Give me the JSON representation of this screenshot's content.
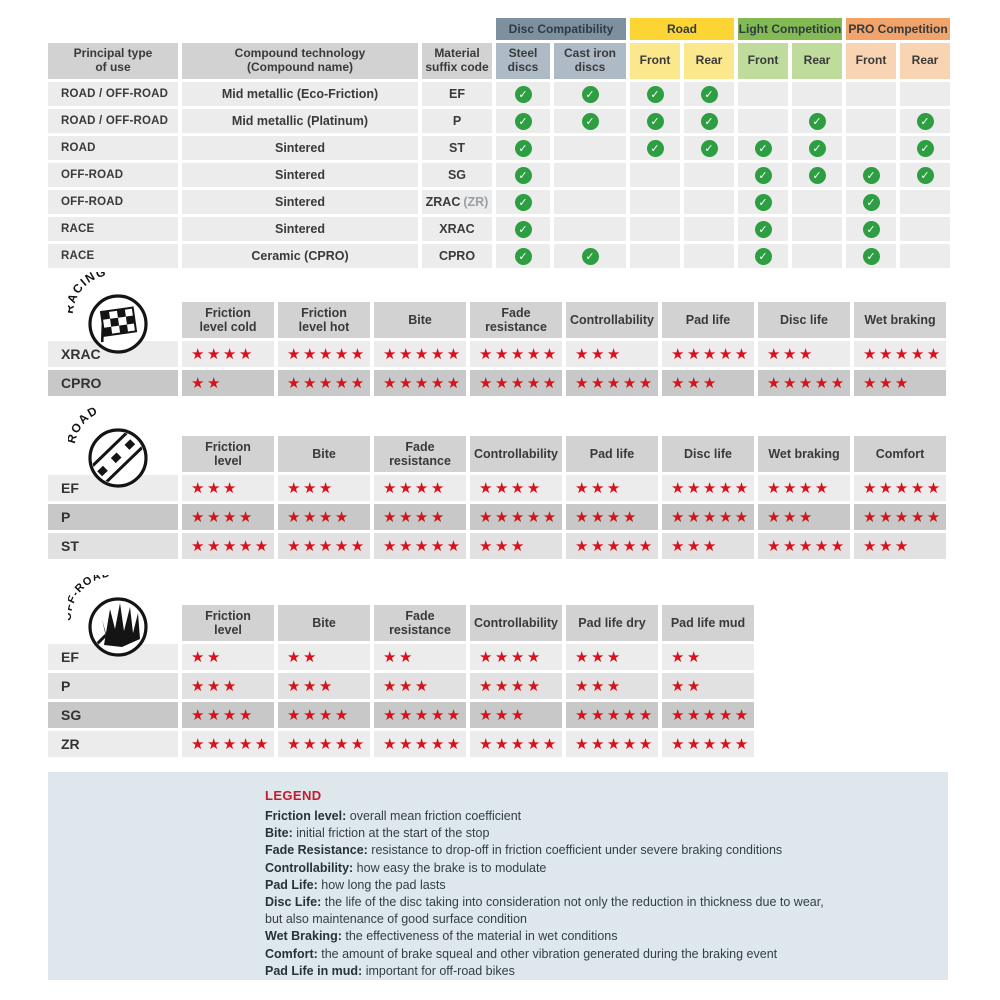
{
  "glyphs": {
    "check": "✓",
    "star": "★"
  },
  "palette": {
    "header_gray": "#d2d2d2",
    "row_light": "#ececec",
    "row_mid": "#e1e1e1",
    "row_dark": "#c8c8c8",
    "star_red": "#d6121b",
    "check_green": "#2d9e41",
    "icon_black": "#141414",
    "legend_bg": "#dee8ec",
    "legend_title_red": "#c8182b",
    "legend_text": "#333d45"
  },
  "compat": {
    "col_headers": [
      "Principal type\nof use",
      "Compound technology\n(Compound name)",
      "Material\nsuffix code"
    ],
    "groups": [
      {
        "label": "Disc Compatibility",
        "color": "#7d90a0",
        "sub_color": "#aebbc6",
        "subs": [
          "Steel\ndiscs",
          "Cast iron\ndiscs"
        ]
      },
      {
        "label": "Road",
        "color": "#fcd535",
        "sub_color": "#fbe88c",
        "subs": [
          "Front",
          "Rear"
        ]
      },
      {
        "label": "Light Competition",
        "color": "#83ba53",
        "sub_color": "#bfdc9d",
        "subs": [
          "Front",
          "Rear"
        ]
      },
      {
        "label": "PRO Competition",
        "color": "#f2a36a",
        "sub_color": "#f9d4b2",
        "subs": [
          "Front",
          "Rear"
        ]
      }
    ],
    "rows": [
      {
        "use": "ROAD / OFF-ROAD",
        "compound": "Mid metallic (Eco-Friction)",
        "code": "EF",
        "code_note": "",
        "checks": [
          1,
          1,
          1,
          1,
          0,
          0,
          0,
          0
        ]
      },
      {
        "use": "ROAD / OFF-ROAD",
        "compound": "Mid metallic (Platinum)",
        "code": "P",
        "code_note": "",
        "checks": [
          1,
          1,
          1,
          1,
          0,
          1,
          0,
          1
        ]
      },
      {
        "use": "ROAD",
        "compound": "Sintered",
        "code": "ST",
        "code_note": "",
        "checks": [
          1,
          0,
          1,
          1,
          1,
          1,
          0,
          1
        ]
      },
      {
        "use": "OFF-ROAD",
        "compound": "Sintered",
        "code": "SG",
        "code_note": "",
        "checks": [
          1,
          0,
          0,
          0,
          1,
          1,
          1,
          1
        ]
      },
      {
        "use": "OFF-ROAD",
        "compound": "Sintered",
        "code": "ZRAC",
        "code_note": "(ZR)",
        "checks": [
          1,
          0,
          0,
          0,
          1,
          0,
          1,
          0
        ]
      },
      {
        "use": "RACE",
        "compound": "Sintered",
        "code": "XRAC",
        "code_note": "",
        "checks": [
          1,
          0,
          0,
          0,
          1,
          0,
          1,
          0
        ]
      },
      {
        "use": "RACE",
        "compound": "Ceramic (CPRO)",
        "code": "CPRO",
        "code_note": "",
        "checks": [
          1,
          1,
          0,
          0,
          1,
          0,
          1,
          0
        ]
      }
    ]
  },
  "sections": [
    {
      "id": "racing",
      "label": "RACING",
      "icon": "racing-flag-icon",
      "columns": [
        "Friction\nlevel cold",
        "Friction\nlevel hot",
        "Bite",
        "Fade\nresistance",
        "Controllability",
        "Pad life",
        "Disc life",
        "Wet braking"
      ],
      "rows": [
        {
          "code": "XRAC",
          "shade": "light",
          "ratings": [
            4,
            5,
            5,
            5,
            3,
            5,
            3,
            5
          ]
        },
        {
          "code": "CPRO",
          "shade": "dark",
          "ratings": [
            2,
            5,
            5,
            5,
            5,
            3,
            5,
            3
          ]
        }
      ]
    },
    {
      "id": "road",
      "label": "ROAD",
      "icon": "road-icon",
      "columns": [
        "Friction\nlevel",
        "Bite",
        "Fade\nresistance",
        "Controllability",
        "Pad life",
        "Disc life",
        "Wet braking",
        "Comfort"
      ],
      "rows": [
        {
          "code": "EF",
          "shade": "light",
          "ratings": [
            3,
            3,
            4,
            4,
            3,
            5,
            4,
            5
          ]
        },
        {
          "code": "P",
          "shade": "dark",
          "ratings": [
            4,
            4,
            4,
            5,
            4,
            5,
            3,
            5
          ]
        },
        {
          "code": "ST",
          "shade": "mid",
          "ratings": [
            5,
            5,
            5,
            3,
            5,
            3,
            5,
            3
          ]
        }
      ]
    },
    {
      "id": "offroad",
      "label": "OFF-ROAD",
      "icon": "offroad-icon",
      "columns": [
        "Friction\nlevel",
        "Bite",
        "Fade\nresistance",
        "Controllability",
        "Pad life dry",
        "Pad life mud"
      ],
      "rows": [
        {
          "code": "EF",
          "shade": "light",
          "ratings": [
            2,
            2,
            2,
            4,
            3,
            2
          ]
        },
        {
          "code": "P",
          "shade": "mid",
          "ratings": [
            3,
            3,
            3,
            4,
            3,
            2
          ]
        },
        {
          "code": "SG",
          "shade": "dark",
          "ratings": [
            4,
            4,
            5,
            3,
            5,
            5
          ]
        },
        {
          "code": "ZR",
          "shade": "light",
          "ratings": [
            5,
            5,
            5,
            5,
            5,
            5
          ]
        }
      ]
    }
  ],
  "legend": {
    "title": "LEGEND",
    "entries": [
      {
        "term": "Friction level",
        "text": "overall mean friction coefficient"
      },
      {
        "term": "Bite",
        "text": "initial friction at the start of the stop"
      },
      {
        "term": "Fade Resistance",
        "text": "resistance to drop-off in friction coefficient under severe braking conditions"
      },
      {
        "term": "Controllability",
        "text": "how easy the brake is to modulate"
      },
      {
        "term": "Pad Life",
        "text": "how long the pad lasts"
      },
      {
        "term": "Disc Life",
        "text": "the life of the disc taking into consideration not only the reduction in thickness due to wear,"
      },
      {
        "term": "",
        "text": "but also maintenance of good surface condition"
      },
      {
        "term": "Wet Braking",
        "text": "the effectiveness of the material in wet conditions"
      },
      {
        "term": "Comfort",
        "text": "the amount of brake squeal and other vibration generated during the braking event"
      },
      {
        "term": "Pad Life in mud",
        "text": "important for off-road bikes"
      }
    ]
  }
}
